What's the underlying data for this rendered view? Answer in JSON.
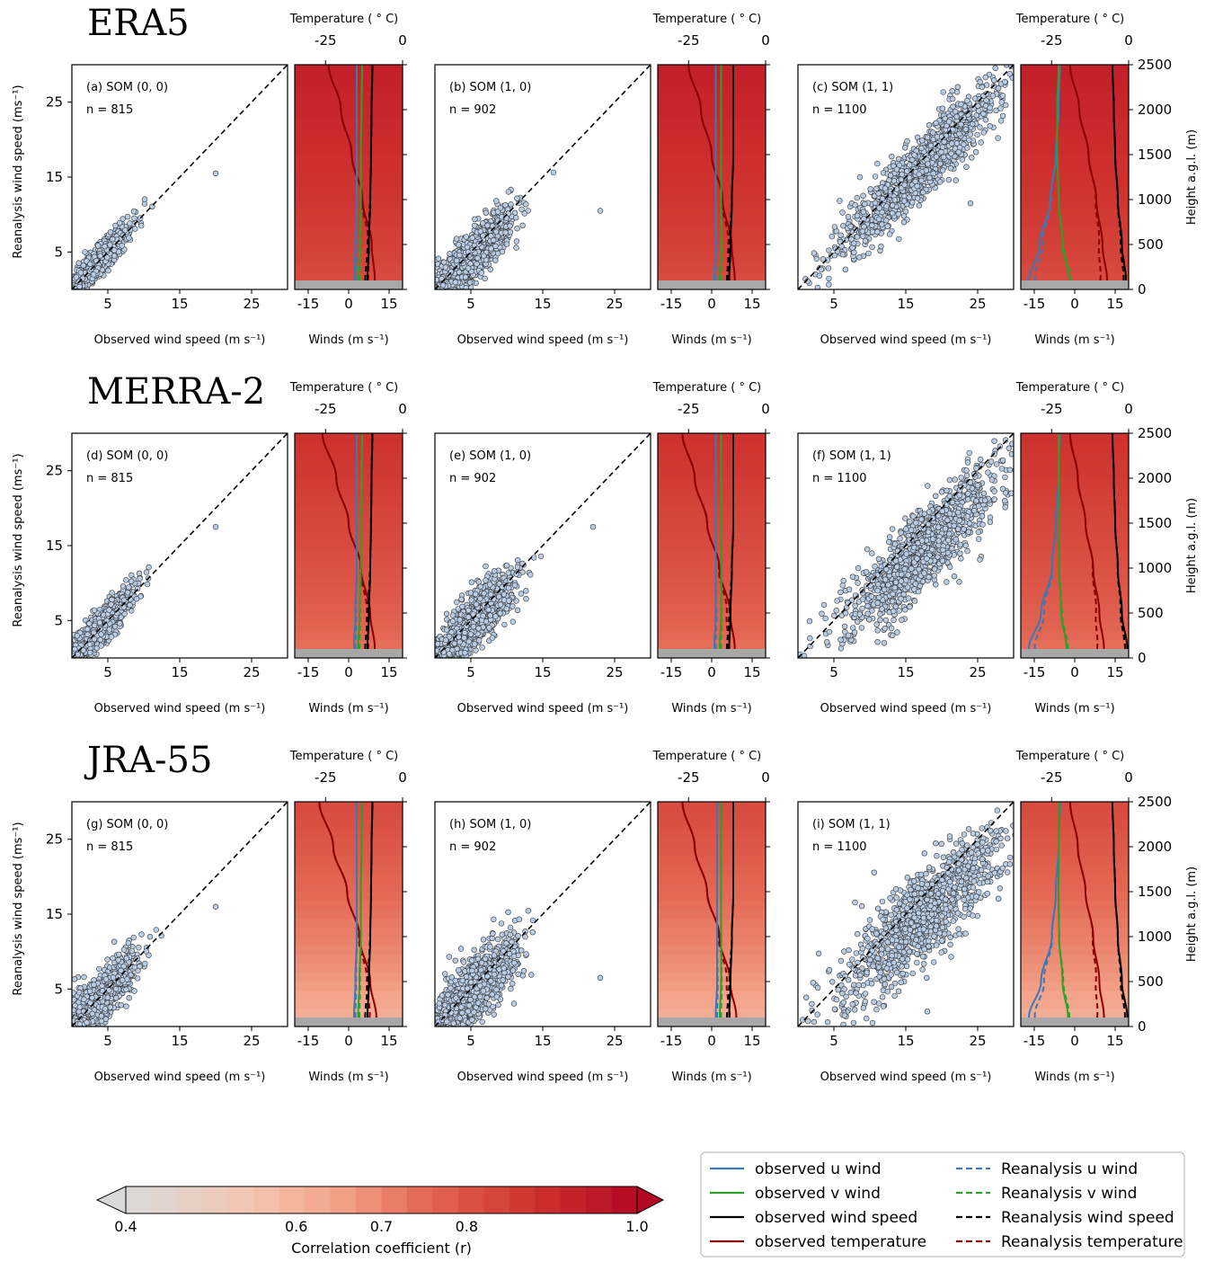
{
  "colors": {
    "u_wind": "#3a78b8",
    "v_wind": "#2ca02c",
    "wind_speed": "#000000",
    "temperature": "#8b0000",
    "point_fill": "#b8cce4",
    "point_edge": "#3a3a3a",
    "ground": "#a8a8a8"
  },
  "axes_text": {
    "scatter_xlabel": "Observed wind speed (m s⁻¹)",
    "scatter_ylabel": "Reanalysis wind speed (ms⁻¹)",
    "profile_xlabel": "Winds (m s⁻¹)",
    "profile_toplabel": "Temperature ( ° C)",
    "height_label": "Height a.g.l. (m)",
    "scatter_ticks": [
      "5",
      "15",
      "25"
    ],
    "wind_ticks": [
      "-15",
      "0",
      "15"
    ],
    "temp_ticks": [
      "-25",
      "0"
    ],
    "height_ticks": [
      "0",
      "500",
      "1000",
      "1500",
      "2000",
      "2500"
    ]
  },
  "chart_data": {
    "type": "scatter",
    "scatter_range": [
      0,
      30
    ],
    "wind_range": [
      -20,
      20
    ],
    "temp_range": [
      -35,
      0
    ],
    "height_range": [
      0,
      2500
    ],
    "rows": [
      {
        "dataset": "ERA5",
        "corr_base": 0.82,
        "corr_top": 0.93,
        "panels": [
          {
            "label": "(a) SOM (0, 0)",
            "n_label": "n = 815",
            "n": 815,
            "mean": 3.5,
            "spread": 2.2,
            "slope": 1.0,
            "noise": 1.0,
            "outlier": [
              20,
              15.5
            ],
            "profile": {
              "u": [
                2.0,
                2.5,
                3.0,
                3.0,
                3.0,
                3.0
              ],
              "v": [
                3.5,
                4.2,
                4.5,
                4.5,
                4.8,
                5.0
              ],
              "ws": [
                7.0,
                7.5,
                8.0,
                8.3,
                8.5,
                8.8
              ],
              "t": [
                -9.0,
                -10.0,
                -13.0,
                -16.5,
                -20.0,
                -24.0
              ]
            }
          },
          {
            "label": "(b) SOM (1, 0)",
            "n_label": "n = 902",
            "n": 902,
            "mean": 5.5,
            "spread": 2.8,
            "slope": 0.9,
            "noise": 1.6,
            "outlier": [
              23,
              10.5
            ],
            "profile": {
              "u": [
                1.0,
                1.5,
                1.5,
                1.5,
                1.5,
                1.5
              ],
              "v": [
                3.0,
                3.5,
                3.5,
                3.5,
                3.5,
                3.5
              ],
              "ws": [
                6.5,
                7.0,
                7.5,
                8.0,
                8.0,
                8.0
              ],
              "t": [
                -10.0,
                -11.0,
                -14.0,
                -17.5,
                -21.0,
                -25.0
              ]
            }
          },
          {
            "label": "(c) SOM (1, 1)",
            "n_label": "n = 1100",
            "n": 1100,
            "mean": 17,
            "spread": 5.5,
            "slope": 0.95,
            "noise": 2.2,
            "outlier": [
              24,
              11.5
            ],
            "profile": {
              "u": [
                -17.0,
                -13.0,
                -9.0,
                -7.0,
                -6.0,
                -5.5
              ],
              "v": [
                -2.0,
                -4.5,
                -6.0,
                -6.5,
                -6.5,
                -6.0
              ],
              "ws": [
                19.0,
                17.5,
                16.0,
                15.0,
                14.5,
                14.0
              ],
              "t": [
                -7.0,
                -8.5,
                -10.5,
                -13.0,
                -16.0,
                -19.0
              ]
            }
          }
        ]
      },
      {
        "dataset": "MERRA-2",
        "corr_base": 0.74,
        "corr_top": 0.88,
        "panels": [
          {
            "label": "(d) SOM (0, 0)",
            "n_label": "n = 815",
            "n": 815,
            "mean": 3.5,
            "spread": 2.4,
            "slope": 1.0,
            "noise": 1.2,
            "outlier": [
              20,
              17.5
            ],
            "profile": {
              "u": [
                2.0,
                2.5,
                3.0,
                3.0,
                3.0,
                3.0
              ],
              "v": [
                3.5,
                4.0,
                4.5,
                4.5,
                4.8,
                5.0
              ],
              "ws": [
                7.0,
                7.5,
                8.0,
                8.3,
                8.5,
                8.8
              ],
              "t": [
                -9.0,
                -10.5,
                -13.5,
                -17.5,
                -21.5,
                -26.0
              ]
            }
          },
          {
            "label": "(e) SOM (1, 0)",
            "n_label": "n = 902",
            "n": 902,
            "mean": 5.5,
            "spread": 2.8,
            "slope": 0.9,
            "noise": 1.8,
            "outlier": [
              22,
              17.5
            ],
            "profile": {
              "u": [
                1.0,
                1.5,
                1.5,
                1.5,
                1.5,
                1.5
              ],
              "v": [
                3.0,
                3.5,
                3.5,
                3.5,
                3.5,
                3.5
              ],
              "ws": [
                6.5,
                7.0,
                7.5,
                8.0,
                8.0,
                8.0
              ],
              "t": [
                -10.0,
                -11.5,
                -15.0,
                -19.0,
                -23.0,
                -27.0
              ]
            }
          },
          {
            "label": "(f) SOM (1, 1)",
            "n_label": "n = 1100",
            "n": 1100,
            "mean": 17,
            "spread": 5.5,
            "slope": 0.85,
            "noise": 2.6,
            "outlier": [
              12,
              2.0
            ],
            "profile": {
              "u": [
                -17.0,
                -12.5,
                -8.5,
                -7.0,
                -6.0,
                -5.5
              ],
              "v": [
                -3.0,
                -5.0,
                -5.8,
                -6.0,
                -6.0,
                -6.0
              ],
              "ws": [
                19.5,
                17.5,
                16.0,
                15.0,
                14.5,
                14.0
              ],
              "t": [
                -8.0,
                -9.5,
                -11.5,
                -14.0,
                -16.5,
                -19.0
              ]
            }
          }
        ]
      },
      {
        "dataset": "JRA-55",
        "corr_base": 0.62,
        "corr_top": 0.82,
        "panels": [
          {
            "label": "(g) SOM (0, 0)",
            "n_label": "n = 815",
            "n": 815,
            "mean": 3.8,
            "spread": 2.5,
            "slope": 1.0,
            "noise": 1.7,
            "outlier": [
              20,
              16.0
            ],
            "profile": {
              "u": [
                2.0,
                2.5,
                3.0,
                3.0,
                3.0,
                3.0
              ],
              "v": [
                3.5,
                4.0,
                4.5,
                4.5,
                4.8,
                5.0
              ],
              "ws": [
                7.0,
                7.5,
                8.0,
                8.3,
                8.5,
                8.8
              ],
              "t": [
                -8.5,
                -10.5,
                -14.0,
                -18.0,
                -22.5,
                -27.0
              ]
            }
          },
          {
            "label": "(h) SOM (1, 0)",
            "n_label": "n = 902",
            "n": 902,
            "mean": 5.5,
            "spread": 2.9,
            "slope": 0.9,
            "noise": 2.2,
            "outlier": [
              23,
              6.5
            ],
            "profile": {
              "u": [
                1.5,
                2.0,
                2.0,
                2.0,
                2.0,
                2.0
              ],
              "v": [
                3.0,
                3.5,
                3.5,
                3.5,
                3.5,
                3.5
              ],
              "ws": [
                6.5,
                7.0,
                7.5,
                8.0,
                8.0,
                8.0
              ],
              "t": [
                -9.5,
                -11.5,
                -15.0,
                -19.0,
                -23.0,
                -27.0
              ]
            }
          },
          {
            "label": "(i) SOM (1, 1)",
            "n_label": "n = 1100",
            "n": 1100,
            "mean": 17,
            "spread": 5.5,
            "slope": 0.85,
            "noise": 3.0,
            "outlier": [
              18,
              2.0
            ],
            "profile": {
              "u": [
                -17.0,
                -12.5,
                -8.5,
                -7.0,
                -6.0,
                -5.5
              ],
              "v": [
                -2.5,
                -4.5,
                -5.8,
                -6.0,
                -6.0,
                -6.0
              ],
              "ws": [
                19.5,
                17.5,
                16.0,
                15.0,
                14.5,
                14.0
              ],
              "t": [
                -8.0,
                -9.5,
                -11.5,
                -14.0,
                -16.5,
                -19.0
              ]
            }
          }
        ]
      }
    ],
    "colorbar": {
      "label": "Correlation coefficient (r)",
      "range": [
        0.4,
        1.0
      ],
      "ticks": [
        "0.4",
        "0.6",
        "0.7",
        "0.8",
        "1.0"
      ],
      "tick_values": [
        0.4,
        0.6,
        0.7,
        0.8,
        1.0
      ],
      "levels": 20
    },
    "legend": [
      {
        "label": "observed u wind",
        "color": "u_wind",
        "style": "solid"
      },
      {
        "label": "Reanalysis u wind",
        "color": "u_wind",
        "style": "dashed"
      },
      {
        "label": "observed v wind",
        "color": "v_wind",
        "style": "solid"
      },
      {
        "label": "Reanalysis v wind",
        "color": "v_wind",
        "style": "dashed"
      },
      {
        "label": "observed wind speed",
        "color": "wind_speed",
        "style": "solid"
      },
      {
        "label": "Reanalysis wind speed",
        "color": "wind_speed",
        "style": "dashed"
      },
      {
        "label": "observed temperature",
        "color": "temperature",
        "style": "solid"
      },
      {
        "label": "Reanalysis temperature",
        "color": "temperature",
        "style": "dashed"
      }
    ]
  }
}
